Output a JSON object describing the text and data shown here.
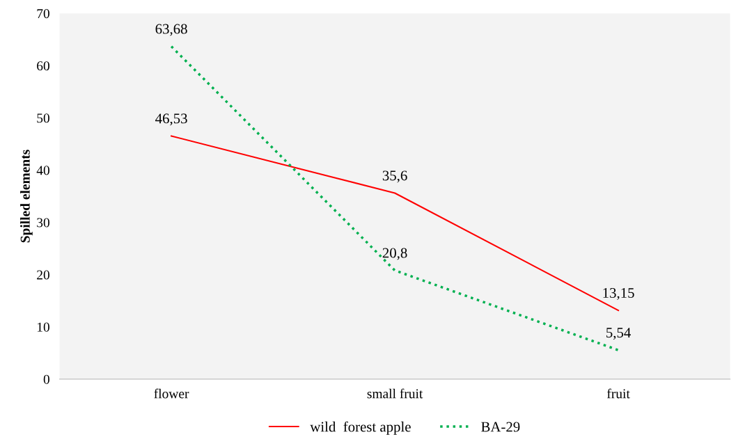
{
  "chart_data": {
    "type": "line",
    "ylabel": "Spilled elements",
    "categories": [
      "flower",
      "small fruit",
      "fruit"
    ],
    "series": [
      {
        "name": "wild  forest apple",
        "color": "#ff0000",
        "values": [
          46.53,
          35.6,
          13.15
        ],
        "line_style": "solid",
        "value_labels": [
          "46,53",
          "35,6",
          "13,15"
        ]
      },
      {
        "name": "BA-29",
        "color": "#00b050",
        "values": [
          63.68,
          20.8,
          5.54
        ],
        "line_style": "dotted",
        "value_labels": [
          "63,68",
          "20,8",
          "5,54"
        ]
      }
    ],
    "ylim": [
      0,
      70
    ],
    "yticks": [
      0,
      10,
      20,
      30,
      40,
      50,
      60,
      70
    ],
    "grid": false,
    "legend": "bottom",
    "marker": "none"
  }
}
